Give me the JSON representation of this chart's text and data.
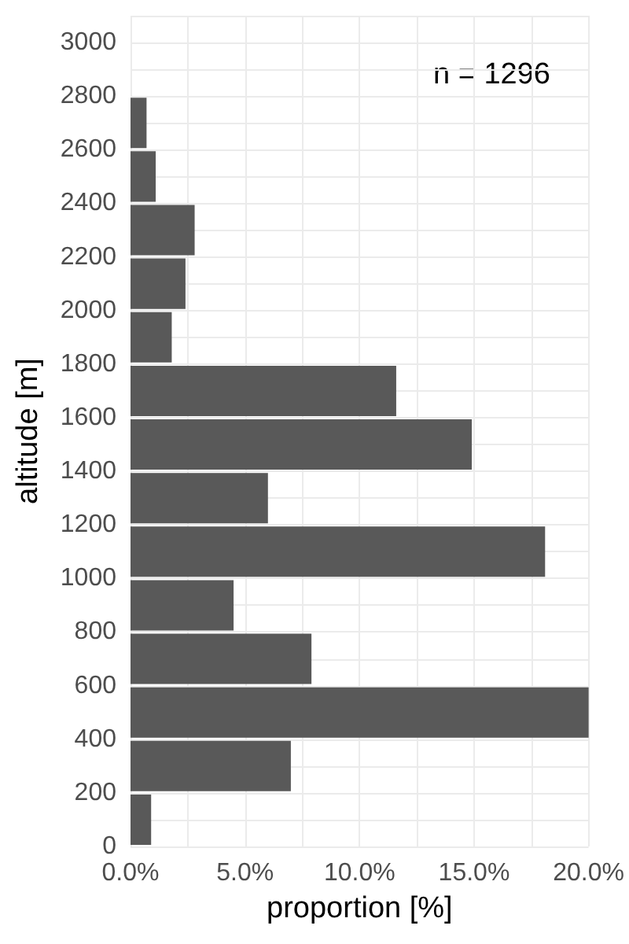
{
  "chart_data": {
    "type": "histogram",
    "orientation": "horizontal",
    "bins": [
      0,
      200,
      400,
      600,
      800,
      1000,
      1200,
      1400,
      1600,
      1800,
      2000,
      2200,
      2400,
      2600,
      2800
    ],
    "values": [
      0.9,
      7.0,
      20.0,
      7.9,
      4.5,
      18.1,
      6.0,
      14.9,
      11.6,
      1.8,
      2.4,
      2.8,
      1.1,
      0.7
    ],
    "color": "#595959",
    "xlabel": "proportion [%]",
    "ylabel": "altitude [m]",
    "xlim": [
      0,
      20
    ],
    "xticks": [
      {
        "value": 0,
        "label": "0.0%"
      },
      {
        "value": 2.5,
        "label": null
      },
      {
        "value": 5,
        "label": "5.0%"
      },
      {
        "value": 7.5,
        "label": null
      },
      {
        "value": 10,
        "label": "10.0%"
      },
      {
        "value": 12.5,
        "label": null
      },
      {
        "value": 15,
        "label": "15.0%"
      },
      {
        "value": 17.5,
        "label": null
      },
      {
        "value": 20,
        "label": "20.0%"
      }
    ],
    "ylim": [
      0,
      3100
    ],
    "yticks": [
      0,
      {
        "value": 100,
        "label": null
      },
      200,
      {
        "value": 300,
        "label": null
      },
      400,
      600,
      {
        "value": 700,
        "label": null
      },
      800,
      {
        "value": 900,
        "label": null
      },
      1000,
      {
        "value": 1100,
        "label": null
      },
      1200,
      {
        "value": 1300,
        "label": null
      },
      1400,
      {
        "value": 1500,
        "label": null
      },
      1600,
      {
        "value": 1700,
        "label": null
      },
      1800,
      {
        "value": 1900,
        "label": null
      },
      2000,
      {
        "value": 2100,
        "label": null
      },
      2200,
      {
        "value": 2300,
        "label": null
      },
      2400,
      {
        "value": 2500,
        "label": null
      },
      2600,
      {
        "value": 2700,
        "label": null
      },
      2800,
      {
        "value": 2900,
        "label": null
      },
      3000,
      {
        "value": 3100,
        "label": null
      }
    ],
    "grid": true,
    "annotations": [
      "n = 1296"
    ]
  }
}
